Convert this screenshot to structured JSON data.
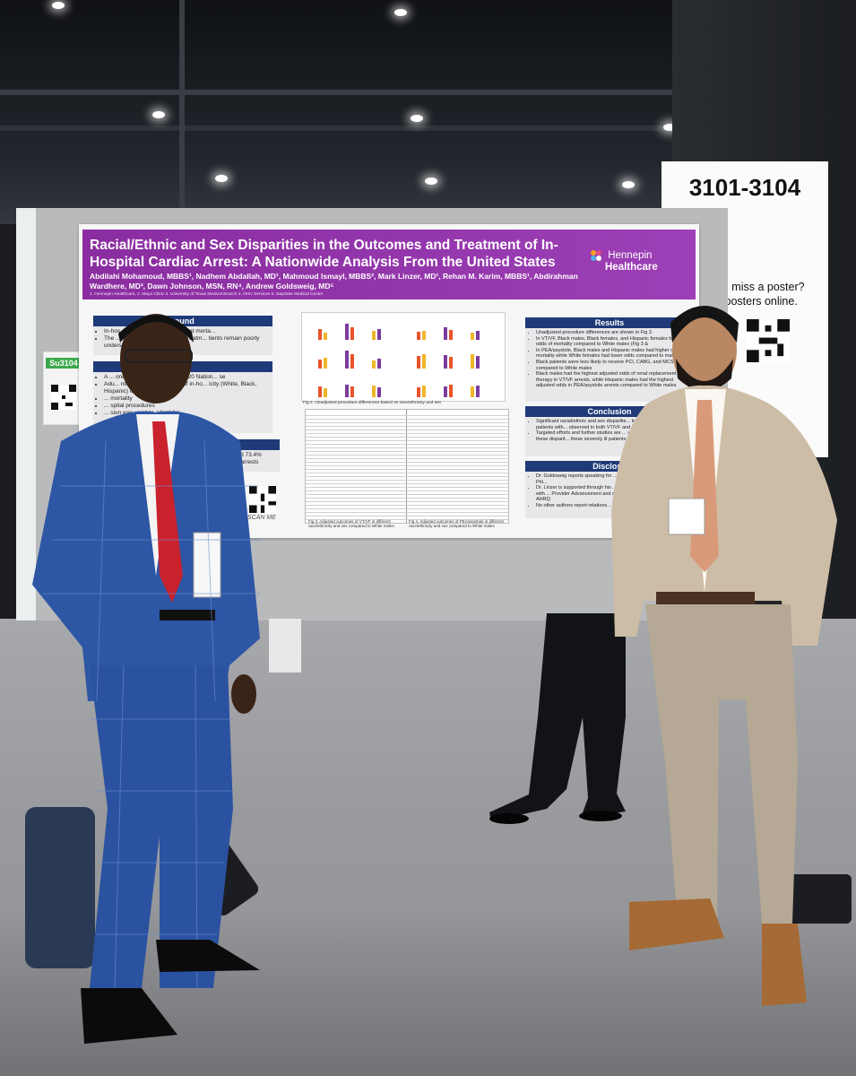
{
  "poster": {
    "title": "Racial/Ethnic and Sex Disparities in the Outcomes and Treatment of In-Hospital Cardiac Arrest: A Nationwide Analysis From the United States",
    "authors": "Abdilahi Mohamoud, MBBS¹, Nadhem Abdallah, MD¹, Mahmoud Ismayl, MBBS², Mark Linzer, MD¹, Rehan M. Karim, MBBS¹, Abdirahman Wardhere, MD³, Dawn Johnson, MSN, RN⁴, Andrew Goldsweig, MD⁵",
    "affiliations": "1. Hennepin Healthcare, 2. Mayo Clinic 3. University of Texas Medical Branch 4. OHU Services 5. Baystate Medical Center",
    "logo_line1": "Hennepin",
    "logo_line2": "Healthcare",
    "background_heading": "round",
    "background_items": [
      "In-hos... associated with significant morta...",
      "The ... nd sex to outcomes and treatm... tients remain poorly understood"
    ],
    "methods_heading": "ds",
    "methods_items": [
      "A ... onducted using the 2016-2020 Nation... se",
      "Adu... ntified and associations of in-ho... icity (White, Black, Hispanic) of ... examined",
      "... mortality",
      "... spital procedures",
      "... sion was used to adjust for"
    ],
    "results_left_heading": "",
    "results_left_text": "had VT/VF and 73.4% PEA/asystole arrests",
    "results_heading": "Results",
    "results_items": [
      "Unadjusted procedure differences are shown in Fig 2.",
      "In VT/VF, Black males, Black females, and Hispanic females higher odds of mortality compared to White males (Fig 3 &",
      "In PEA/asystole, Black males and Hispanic males had higher of mortality while White females had lower odds compared to males",
      "Black patients were less likely to receive PCI, CABG, and MCS compared to White males",
      "Black males had the highest adjusted odds of renal replacement therapy in VT/VF arrests, while Hispanic males had the highest adjusted odds in PEA/asystole arrests compared to White males"
    ],
    "conclusion_heading": "Conclusion",
    "conclusion_items": [
      "Significant racial/ethnic and sex disparitie... treatment patterns among patients with... observed in both VT/VF and PEA/asysto...",
      "Targeted efforts and further studies are ... understand and address these disparit... these severely ill patients"
    ],
    "disclosure_heading": "Disclosu",
    "disclosure_items": [
      "Dr. Goldsweig reports speaking for ... Lifesciences and consulting for Phi...",
      "Dr. Linzer is supported through his ... for burnout reduction studies with ... Provider Advancement and other ... supported by NIH and AHRQ",
      "No other authors report relations..."
    ],
    "fig2_caption": "Fig 2. Unadjusted procedure differences based on race/ethnicity and sex",
    "fig3_caption": "Fig 3. Adjusted outcomes of VT/VF in different race/ethnicity and sex compared to White males",
    "fig4_caption": "Fig 4. Adjusted outcomes of PEA/asystole in different race/ethnicity and sex compared to White males",
    "scan_me": "SCAN ME",
    "colors": {
      "banner": "#9536ad",
      "section_head": "#1f3a78"
    }
  },
  "sign": {
    "booth_numbers": "3101-3104",
    "line1": "Did you miss a poster?",
    "line2": "View posters online."
  },
  "board_tag": {
    "code": "Su3104"
  },
  "scene": {
    "people": [
      "presenter-left-blue-suit",
      "presenter-right-tan-suit",
      "visitor-behind-poster"
    ]
  }
}
